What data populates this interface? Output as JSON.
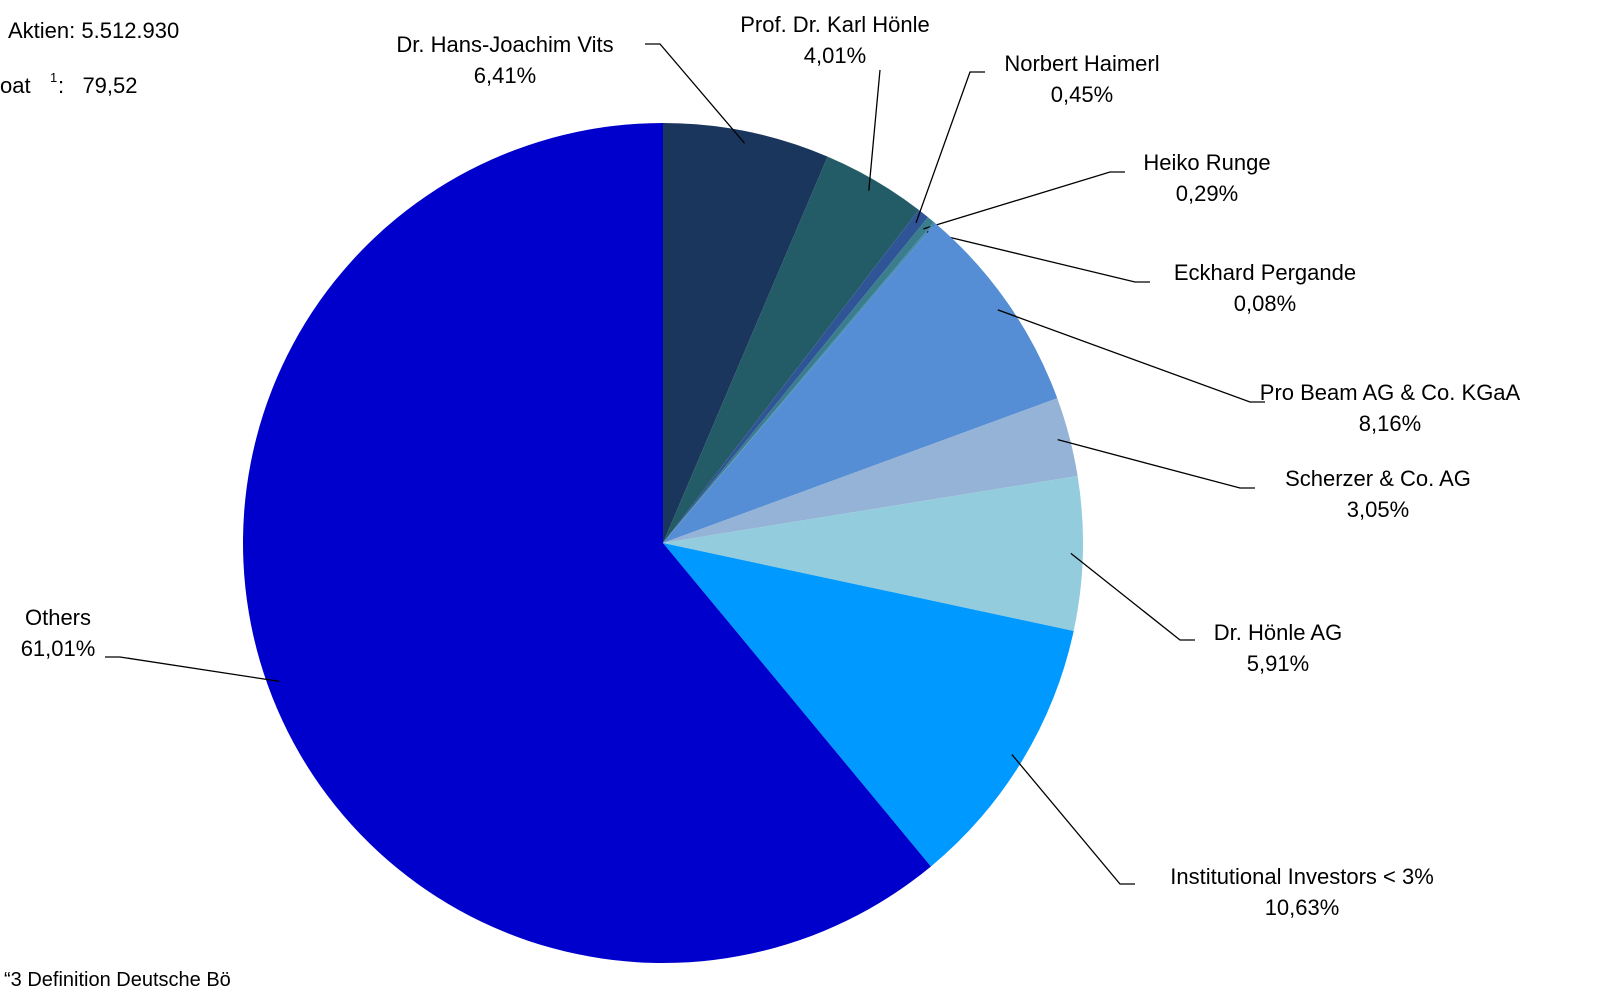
{
  "chart_data": {
    "type": "pie",
    "annotations": [
      "Aktien: 5.512.930",
      "oat",
      "1",
      ":   79,52",
      "“3 Definition Deutsche Bö"
    ],
    "categories": [
      "Dr. Hans-Joachim Vits",
      "Prof. Dr. Karl Hönle",
      "Norbert Haimerl",
      "Heiko Runge",
      "Eckhard Pergande",
      "Pro Beam AG & Co. KGaA",
      "Scherzer & Co. AG",
      "Dr. Hönle AG",
      "Institutional Investors < 3%",
      "Others"
    ],
    "values": [
      6.41,
      4.01,
      0.45,
      0.29,
      0.08,
      8.16,
      3.05,
      5.91,
      10.63,
      61.01
    ],
    "value_labels": [
      "6,41%",
      "4,01%",
      "0,45%",
      "0,29%",
      "0,08%",
      "8,16%",
      "3,05%",
      "5,91%",
      "10,63%",
      "61,01%"
    ],
    "colors": [
      "#1b365d",
      "#235b66",
      "#2f5597",
      "#3a7d8c",
      "#4a8bb5",
      "#558ed5",
      "#95b3d7",
      "#93cddd",
      "#0099ff",
      "#0000cc"
    ]
  }
}
